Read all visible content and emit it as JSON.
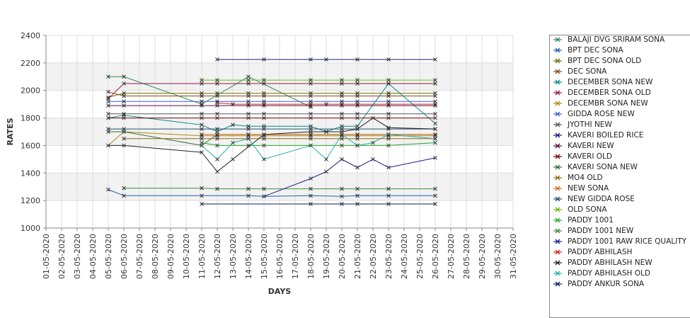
{
  "chart_data": {
    "type": "line",
    "title": "",
    "xlabel": "DAYS",
    "ylabel": "RATES",
    "ylim": [
      1000,
      2400
    ],
    "yticks": [
      1000,
      1200,
      1400,
      1600,
      1800,
      2000,
      2200,
      2400
    ],
    "grid": true,
    "legend_position": "right",
    "categories": [
      "01-05-2020",
      "02-05-2020",
      "03-05-2020",
      "04-05-2020",
      "05-05-2020",
      "06-05-2020",
      "07-05-2020",
      "08-05-2020",
      "09-05-2020",
      "10-05-2020",
      "11-05-2020",
      "12-05-2020",
      "13-05-2020",
      "14-05-2020",
      "15-05-2020",
      "16-05-2020",
      "17-05-2020",
      "18-05-2020",
      "19-05-2020",
      "20-05-2020",
      "21-05-2020",
      "22-05-2020",
      "23-05-2020",
      "24-05-2020",
      "25-05-2020",
      "26-05-2020",
      "27-05-2020",
      "28-05-2020",
      "29-05-2020",
      "30-05-2020",
      "31-05-2020"
    ],
    "series": [
      {
        "name": "BALAJI DVG SRIRAM SONA",
        "color": "#2e8b57",
        "values": [
          null,
          null,
          null,
          null,
          2100,
          2100,
          null,
          null,
          null,
          null,
          1900,
          null,
          null,
          2100,
          null,
          null,
          null,
          1880,
          null,
          null,
          null,
          null,
          null,
          null,
          null,
          null,
          null,
          null,
          null,
          null,
          null
        ]
      },
      {
        "name": "BPT DEC SONA",
        "color": "#1f5fb4",
        "values": [
          null,
          null,
          null,
          null,
          1280,
          1235,
          null,
          null,
          null,
          null,
          1235,
          null,
          null,
          1235,
          1230,
          null,
          null,
          1235,
          null,
          1230,
          1235,
          null,
          1235,
          null,
          null,
          1235,
          null,
          null,
          null,
          null,
          null
        ]
      },
      {
        "name": "BPT DEC SONA OLD",
        "color": "#6b6b00",
        "values": [
          null,
          null,
          null,
          null,
          1950,
          1980,
          null,
          null,
          null,
          null,
          1980,
          1980,
          null,
          1980,
          1980,
          null,
          null,
          1980,
          null,
          1980,
          1980,
          null,
          1980,
          null,
          null,
          1980,
          null,
          null,
          null,
          null,
          null
        ]
      },
      {
        "name": "DEC SONA",
        "color": "#8b4513",
        "values": [
          null,
          null,
          null,
          null,
          1990,
          1960,
          null,
          null,
          null,
          null,
          1960,
          1960,
          null,
          1960,
          1960,
          null,
          null,
          1960,
          null,
          1960,
          1960,
          null,
          1960,
          null,
          null,
          1960,
          null,
          null,
          null,
          null,
          null
        ]
      },
      {
        "name": "DECEMBER SONA NEW",
        "color": "#008b8b",
        "values": [
          null,
          null,
          null,
          null,
          1800,
          1820,
          null,
          null,
          null,
          null,
          1750,
          1700,
          1750,
          1740,
          1740,
          null,
          null,
          1740,
          1700,
          1740,
          1740,
          null,
          2050,
          null,
          null,
          1760,
          null,
          null,
          null,
          null,
          null
        ]
      },
      {
        "name": "DECEMBER SONA OLD",
        "color": "#8b1a4a",
        "values": [
          null,
          null,
          null,
          null,
          1940,
          2050,
          null,
          null,
          null,
          null,
          2050,
          2050,
          null,
          2050,
          2050,
          null,
          null,
          2050,
          null,
          2050,
          2050,
          null,
          2050,
          null,
          null,
          2050,
          null,
          null,
          null,
          null,
          null
        ]
      },
      {
        "name": "DECEMBR SONA NEW",
        "color": "#b8860b",
        "values": [
          null,
          null,
          null,
          null,
          1600,
          1700,
          null,
          null,
          null,
          null,
          1670,
          1670,
          null,
          1670,
          1670,
          null,
          null,
          1670,
          null,
          1670,
          1670,
          null,
          1670,
          null,
          null,
          1670,
          null,
          null,
          null,
          null,
          null
        ]
      },
      {
        "name": "GIDDA ROSE NEW",
        "color": "#3a5fcd",
        "values": [
          null,
          null,
          null,
          null,
          1920,
          1920,
          null,
          null,
          null,
          null,
          1920,
          1920,
          null,
          1920,
          1920,
          null,
          null,
          1920,
          null,
          1920,
          1920,
          null,
          1920,
          null,
          null,
          1920,
          null,
          null,
          null,
          null,
          null
        ]
      },
      {
        "name": "JYOTHI NEW",
        "color": "#555555",
        "values": [
          null,
          null,
          null,
          null,
          1830,
          1830,
          null,
          null,
          null,
          null,
          1830,
          1830,
          null,
          1830,
          1830,
          null,
          null,
          1830,
          null,
          1830,
          1830,
          null,
          1830,
          null,
          null,
          1830,
          null,
          null,
          null,
          null,
          null
        ]
      },
      {
        "name": "KAVERI BOILED RICE",
        "color": "#191970",
        "values": [
          null,
          null,
          null,
          null,
          null,
          null,
          null,
          null,
          null,
          null,
          null,
          2225,
          null,
          null,
          2225,
          null,
          null,
          2225,
          2225,
          null,
          2225,
          null,
          2225,
          null,
          null,
          2225,
          null,
          null,
          null,
          null,
          null
        ]
      },
      {
        "name": "KAVERI NEW",
        "color": "#5c0a3a",
        "values": [
          null,
          null,
          null,
          null,
          1890,
          1890,
          null,
          null,
          null,
          null,
          1890,
          1890,
          null,
          1890,
          1890,
          null,
          null,
          1890,
          null,
          1890,
          1890,
          null,
          1890,
          null,
          null,
          1890,
          null,
          null,
          null,
          null,
          null
        ]
      },
      {
        "name": "KAVERI OLD",
        "color": "#7a0000",
        "values": [
          null,
          null,
          null,
          null,
          1800,
          1800,
          null,
          null,
          null,
          null,
          1800,
          1800,
          null,
          1800,
          1800,
          null,
          null,
          1800,
          null,
          1800,
          1800,
          null,
          1800,
          null,
          null,
          1800,
          null,
          null,
          null,
          null,
          null
        ]
      },
      {
        "name": "KAVERI SONA NEW",
        "color": "#2f6f3f",
        "values": [
          null,
          null,
          null,
          null,
          1700,
          1700,
          null,
          null,
          null,
          null,
          1600,
          1680,
          null,
          1680,
          1680,
          null,
          null,
          1680,
          null,
          1680,
          1680,
          null,
          1680,
          null,
          null,
          1680,
          null,
          null,
          null,
          null,
          null
        ]
      },
      {
        "name": "MO4 OLD",
        "color": "#8b6914",
        "values": [
          null,
          null,
          null,
          null,
          null,
          1650,
          null,
          null,
          null,
          null,
          1650,
          1650,
          null,
          1650,
          1650,
          null,
          null,
          1650,
          null,
          1650,
          1650,
          null,
          1650,
          null,
          null,
          1650,
          null,
          null,
          null,
          null,
          null
        ]
      },
      {
        "name": "NEW  SONA",
        "color": "#d2691e",
        "values": [
          null,
          null,
          null,
          null,
          null,
          null,
          null,
          null,
          null,
          null,
          1680,
          1680,
          null,
          1680,
          1680,
          null,
          null,
          1680,
          null,
          1680,
          1680,
          null,
          1680,
          null,
          null,
          1680,
          null,
          null,
          null,
          null,
          null
        ]
      },
      {
        "name": "NEW GIDDA ROSE",
        "color": "#1f4f6f",
        "values": [
          null,
          null,
          null,
          null,
          1720,
          1720,
          null,
          null,
          null,
          null,
          1720,
          1720,
          null,
          1720,
          1720,
          null,
          null,
          1720,
          null,
          1720,
          1720,
          null,
          1720,
          null,
          null,
          1720,
          null,
          null,
          null,
          null,
          null
        ]
      },
      {
        "name": "OLD SONA",
        "color": "#66bb00",
        "values": [
          null,
          null,
          null,
          null,
          null,
          null,
          null,
          null,
          null,
          null,
          2075,
          2075,
          null,
          2075,
          2075,
          null,
          null,
          2075,
          null,
          2075,
          2075,
          null,
          2075,
          null,
          null,
          2075,
          null,
          null,
          null,
          null,
          null
        ]
      },
      {
        "name": "PADDY 1001",
        "color": "#22aa22",
        "values": [
          null,
          null,
          null,
          null,
          null,
          null,
          null,
          null,
          null,
          null,
          1620,
          1600,
          null,
          1600,
          1600,
          null,
          null,
          1600,
          null,
          1600,
          1600,
          null,
          1600,
          null,
          null,
          1620,
          null,
          null,
          null,
          null,
          null
        ]
      },
      {
        "name": "PADDY 1001 NEW",
        "color": "#3c8c3c",
        "values": [
          null,
          null,
          null,
          null,
          null,
          1290,
          null,
          null,
          null,
          null,
          1290,
          1285,
          null,
          1285,
          1285,
          null,
          null,
          1285,
          null,
          1285,
          1285,
          null,
          1285,
          null,
          null,
          1285,
          null,
          null,
          null,
          null,
          null
        ]
      },
      {
        "name": "PADDY 1001 RAW RICE QUALITY",
        "color": "#1a1a8b",
        "values": [
          null,
          null,
          null,
          null,
          null,
          null,
          null,
          null,
          null,
          null,
          null,
          null,
          null,
          null,
          1230,
          null,
          null,
          1360,
          1410,
          1500,
          1440,
          1500,
          1440,
          null,
          null,
          1510,
          null,
          null,
          null,
          null,
          null
        ]
      },
      {
        "name": "PADDY ABHILASH",
        "color": "#cc2222",
        "values": [
          null,
          null,
          null,
          null,
          null,
          null,
          null,
          null,
          null,
          null,
          null,
          1910,
          1900,
          1900,
          1900,
          null,
          null,
          1900,
          1900,
          1900,
          1900,
          null,
          1900,
          null,
          null,
          1900,
          null,
          null,
          null,
          null,
          null
        ]
      },
      {
        "name": "PADDY ABHILASH NEW",
        "color": "#222222",
        "values": [
          null,
          null,
          null,
          null,
          1600,
          1600,
          null,
          null,
          null,
          null,
          1550,
          1410,
          1500,
          null,
          1680,
          null,
          null,
          1700,
          1700,
          1700,
          1720,
          1800,
          1730,
          null,
          null,
          1720,
          null,
          null,
          null,
          null,
          null
        ]
      },
      {
        "name": "PADDY ABHILASH OLD",
        "color": "#20b2aa",
        "values": [
          null,
          null,
          null,
          null,
          null,
          null,
          null,
          null,
          null,
          null,
          1600,
          1500,
          1620,
          1650,
          1500,
          null,
          null,
          1600,
          1500,
          1680,
          1600,
          1620,
          1680,
          null,
          null,
          1650,
          null,
          null,
          null,
          null,
          null
        ]
      },
      {
        "name": "PADDY ANKUR SONA",
        "color": "#0a1a6f",
        "values": [
          null,
          null,
          null,
          null,
          null,
          null,
          null,
          null,
          null,
          null,
          1175,
          null,
          null,
          null,
          null,
          null,
          null,
          1175,
          null,
          1175,
          1175,
          null,
          1175,
          null,
          null,
          1175,
          null,
          null,
          null,
          null,
          null
        ]
      }
    ]
  }
}
